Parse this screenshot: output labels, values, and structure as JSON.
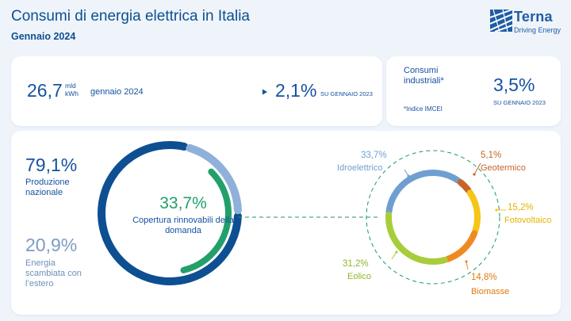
{
  "header": {
    "title": "Consumi di energia elettrica in Italia",
    "subtitle": "Gennaio 2024",
    "logo_word": "Terna",
    "logo_tagline": "Driving Energy"
  },
  "consumption": {
    "value": "26,7",
    "unit_line1": "mld",
    "unit_line2": "kWh",
    "period": "gennaio 2024",
    "change": "2,1%",
    "change_label": "SU GENNAIO 2023"
  },
  "industrial": {
    "title": "Consumi industriali*",
    "note": "*Indice IMCEI",
    "change": "3,5%",
    "change_label": "SU GENNAIO 2023"
  },
  "supply": {
    "national_pct": "79,1%",
    "national_label": "Produzione nazionale",
    "exchange_pct": "20,9%",
    "exchange_label": "Energia scambiata con l’estero"
  },
  "renewables": {
    "coverage_pct": "33,7%",
    "coverage_label": "Copertura rinnovabili della domanda"
  },
  "colors": {
    "national": "#0e4f91",
    "exchange": "#8fb0d9",
    "renewable": "#22a06b",
    "idroelettrico": "#6f9fd0",
    "geotermico": "#c8642a",
    "fotovoltaico": "#f5c518",
    "biomasse": "#ef8a22",
    "eolico": "#a8cd3a"
  },
  "chart_data": [
    {
      "type": "pie",
      "categories": [
        "Produzione nazionale",
        "Energia scambiata con l’estero"
      ],
      "values": [
        79.1,
        20.9
      ]
    },
    {
      "type": "pie",
      "categories": [
        "Copertura rinnovabili della domanda"
      ],
      "values": [
        33.7
      ]
    },
    {
      "type": "pie",
      "categories": [
        "Idroelettrico",
        "Geotermico",
        "Fotovoltaico",
        "Biomasse",
        "Eolico"
      ],
      "values": [
        33.7,
        5.1,
        15.2,
        14.8,
        31.2
      ],
      "labels": [
        "33,7%",
        "5,1%",
        "15,2%",
        "14,8%",
        "31,2%"
      ]
    }
  ]
}
